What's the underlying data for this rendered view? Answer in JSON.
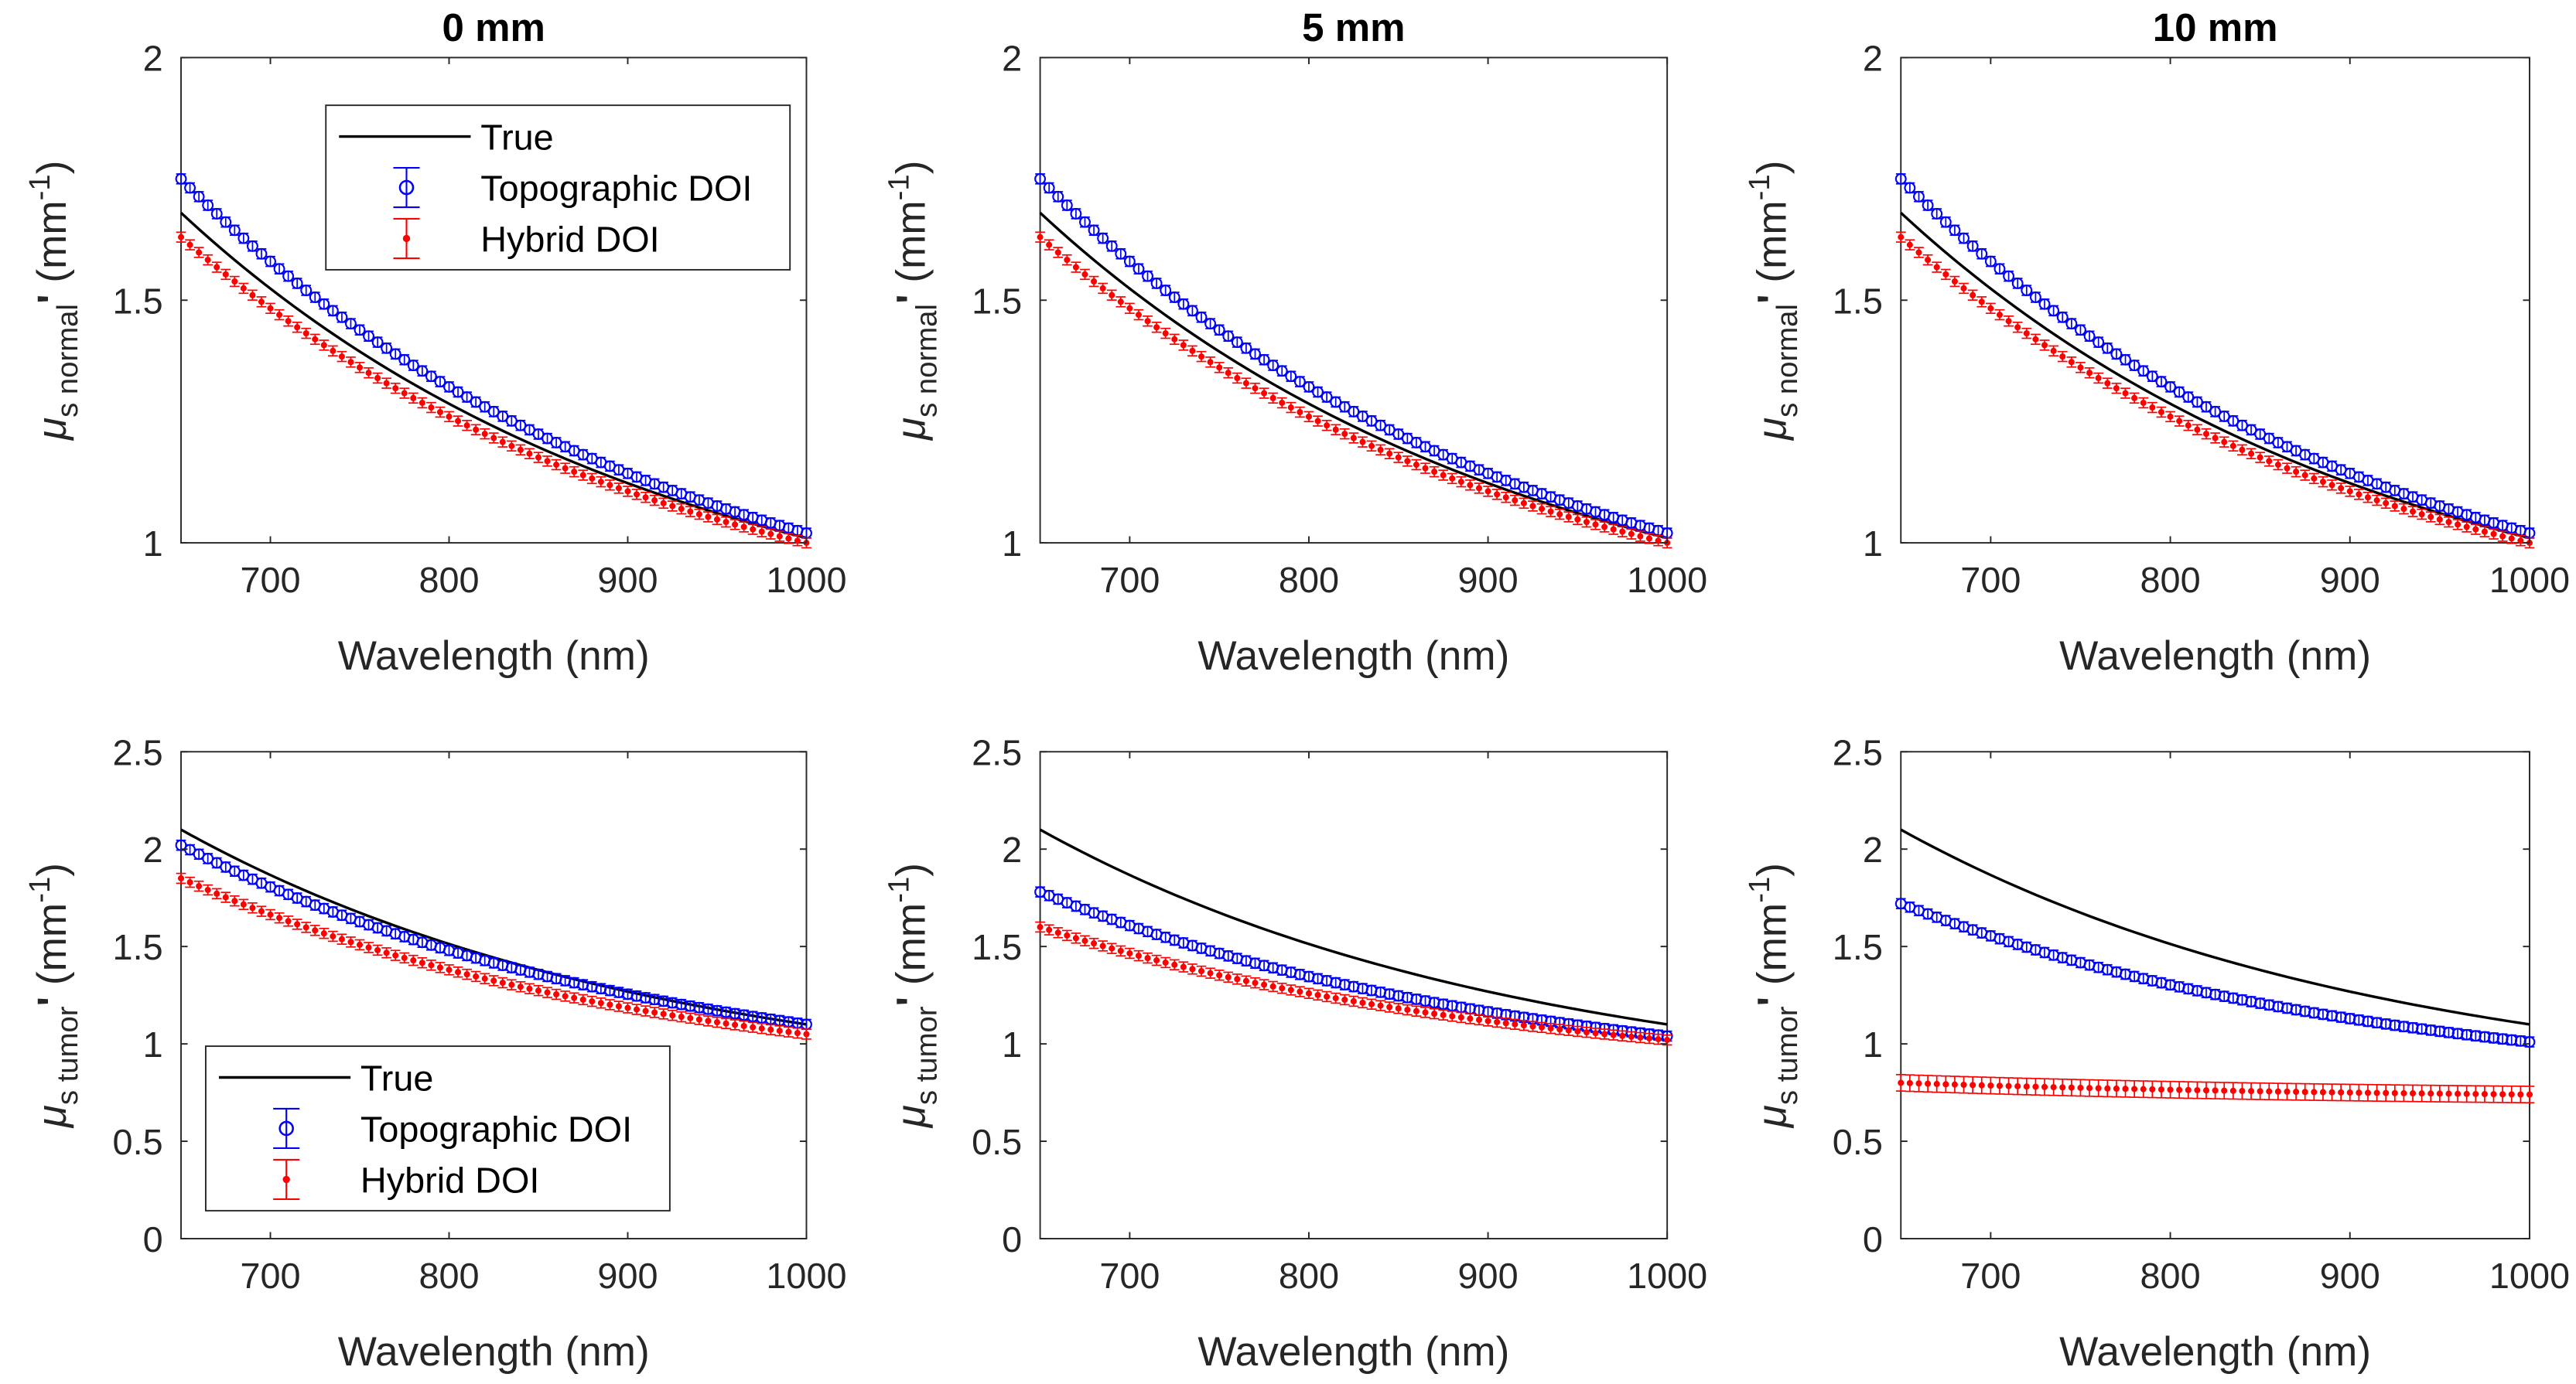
{
  "chart_data": [
    {
      "type": "line",
      "title": "0 mm",
      "xlabel": "Wavelength (nm)",
      "ylabel": {
        "symbol": "μ",
        "sub": "s normal",
        "prime": "'",
        "unit": "(mm",
        "unit_exp": "-1",
        "unit_close": ")"
      },
      "xlim": [
        650,
        1000
      ],
      "ylim": [
        1,
        2
      ],
      "xticks": [
        700,
        800,
        900,
        1000
      ],
      "yticks": [
        1,
        1.5,
        2
      ],
      "legend": {
        "placement": "top-right",
        "entries": [
          "True",
          "Topographic DOI",
          "Hybrid DOI"
        ]
      },
      "series": [
        {
          "name": "True",
          "x": [
            650,
            1000
          ],
          "y": [
            1.68,
            1.01
          ],
          "color": "#000000",
          "marker": "none"
        },
        {
          "name": "Topographic DOI",
          "x": [
            650,
            1000
          ],
          "y": [
            1.75,
            1.02
          ],
          "color": "#0000ff",
          "marker": "circle"
        },
        {
          "name": "Hybrid DOI",
          "x": [
            650,
            1000
          ],
          "y": [
            1.63,
            1.0
          ],
          "color": "#ff0000",
          "marker": "dot"
        }
      ]
    },
    {
      "type": "line",
      "title": "5 mm",
      "xlabel": "Wavelength (nm)",
      "ylabel": {
        "symbol": "μ",
        "sub": "s normal",
        "prime": "'",
        "unit": "(mm",
        "unit_exp": "-1",
        "unit_close": ")"
      },
      "xlim": [
        650,
        1000
      ],
      "ylim": [
        1,
        2
      ],
      "xticks": [
        700,
        800,
        900,
        1000
      ],
      "yticks": [
        1,
        1.5,
        2
      ],
      "series": [
        {
          "name": "True",
          "x": [
            650,
            1000
          ],
          "y": [
            1.68,
            1.01
          ],
          "color": "#000000",
          "marker": "none"
        },
        {
          "name": "Topographic DOI",
          "x": [
            650,
            1000
          ],
          "y": [
            1.75,
            1.02
          ],
          "color": "#0000ff",
          "marker": "circle"
        },
        {
          "name": "Hybrid DOI",
          "x": [
            650,
            1000
          ],
          "y": [
            1.63,
            1.0
          ],
          "color": "#ff0000",
          "marker": "dot"
        }
      ]
    },
    {
      "type": "line",
      "title": "10 mm",
      "xlabel": "Wavelength (nm)",
      "ylabel": {
        "symbol": "μ",
        "sub": "s normal",
        "prime": "'",
        "unit": "(mm",
        "unit_exp": "-1",
        "unit_close": ")"
      },
      "xlim": [
        650,
        1000
      ],
      "ylim": [
        1,
        2
      ],
      "xticks": [
        700,
        800,
        900,
        1000
      ],
      "yticks": [
        1,
        1.5,
        2
      ],
      "series": [
        {
          "name": "True",
          "x": [
            650,
            1000
          ],
          "y": [
            1.68,
            1.01
          ],
          "color": "#000000",
          "marker": "none"
        },
        {
          "name": "Topographic DOI",
          "x": [
            650,
            1000
          ],
          "y": [
            1.75,
            1.02
          ],
          "color": "#0000ff",
          "marker": "circle"
        },
        {
          "name": "Hybrid DOI",
          "x": [
            650,
            1000
          ],
          "y": [
            1.63,
            1.0
          ],
          "color": "#ff0000",
          "marker": "dot"
        }
      ]
    },
    {
      "type": "line",
      "title": "",
      "xlabel": "Wavelength (nm)",
      "ylabel": {
        "symbol": "μ",
        "sub": "s tumor",
        "prime": "'",
        "unit": "(mm",
        "unit_exp": "-1",
        "unit_close": ")"
      },
      "xlim": [
        650,
        1000
      ],
      "ylim": [
        0,
        2.5
      ],
      "xticks": [
        700,
        800,
        900,
        1000
      ],
      "yticks": [
        0,
        0.5,
        1,
        1.5,
        2,
        2.5
      ],
      "legend": {
        "placement": "bottom-left",
        "entries": [
          "True",
          "Topographic DOI",
          "Hybrid DOI"
        ]
      },
      "series": [
        {
          "name": "True",
          "x": [
            650,
            1000
          ],
          "y": [
            2.1,
            1.1
          ],
          "color": "#000000",
          "marker": "none"
        },
        {
          "name": "Topographic DOI",
          "x": [
            650,
            1000
          ],
          "y": [
            2.02,
            1.1
          ],
          "color": "#0000ff",
          "marker": "circle"
        },
        {
          "name": "Hybrid DOI",
          "x": [
            650,
            1000
          ],
          "y": [
            1.85,
            1.05
          ],
          "color": "#ff0000",
          "marker": "dot"
        }
      ]
    },
    {
      "type": "line",
      "title": "",
      "xlabel": "Wavelength (nm)",
      "ylabel": {
        "symbol": "μ",
        "sub": "s tumor",
        "prime": "'",
        "unit": "(mm",
        "unit_exp": "-1",
        "unit_close": ")"
      },
      "xlim": [
        650,
        1000
      ],
      "ylim": [
        0,
        2.5
      ],
      "xticks": [
        700,
        800,
        900,
        1000
      ],
      "yticks": [
        0,
        0.5,
        1,
        1.5,
        2,
        2.5
      ],
      "series": [
        {
          "name": "True",
          "x": [
            650,
            1000
          ],
          "y": [
            2.1,
            1.1
          ],
          "color": "#000000",
          "marker": "none"
        },
        {
          "name": "Topographic DOI",
          "x": [
            650,
            1000
          ],
          "y": [
            1.78,
            1.04
          ],
          "color": "#0000ff",
          "marker": "circle"
        },
        {
          "name": "Hybrid DOI",
          "x": [
            650,
            1000
          ],
          "y": [
            1.6,
            1.02
          ],
          "color": "#ff0000",
          "marker": "dot"
        }
      ]
    },
    {
      "type": "line",
      "title": "",
      "xlabel": "Wavelength (nm)",
      "ylabel": {
        "symbol": "μ",
        "sub": "s tumor",
        "prime": "'",
        "unit": "(mm",
        "unit_exp": "-1",
        "unit_close": ")"
      },
      "xlim": [
        650,
        1000
      ],
      "ylim": [
        0,
        2.5
      ],
      "xticks": [
        700,
        800,
        900,
        1000
      ],
      "yticks": [
        0,
        0.5,
        1,
        1.5,
        2,
        2.5
      ],
      "series": [
        {
          "name": "True",
          "x": [
            650,
            1000
          ],
          "y": [
            2.1,
            1.1
          ],
          "color": "#000000",
          "marker": "none"
        },
        {
          "name": "Topographic DOI",
          "x": [
            650,
            1000
          ],
          "y": [
            1.72,
            1.01
          ],
          "color": "#0000ff",
          "marker": "circle"
        },
        {
          "name": "Hybrid DOI",
          "x": [
            650,
            1000
          ],
          "y": [
            0.8,
            0.74
          ],
          "color": "#ff0000",
          "marker": "dot"
        }
      ]
    }
  ]
}
